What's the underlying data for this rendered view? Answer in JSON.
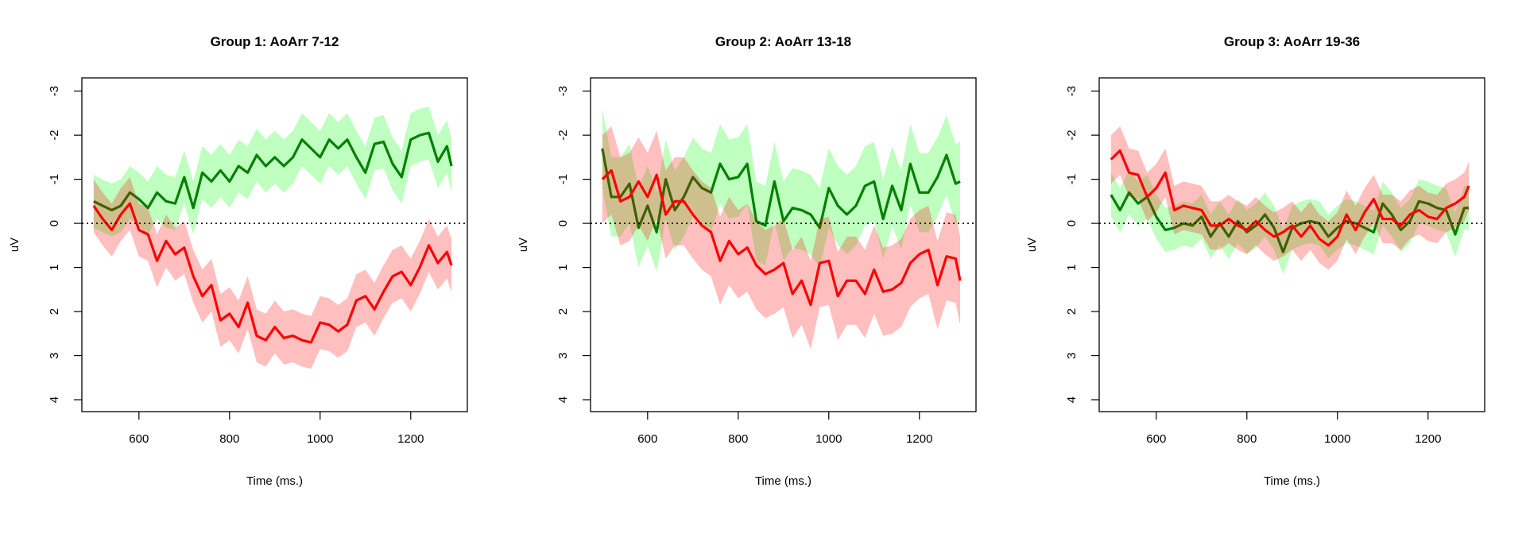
{
  "chart_data": [
    {
      "type": "line",
      "title": "Group 1: AoArr 7-12",
      "xlabel": "Time (ms.)",
      "ylabel": "uV",
      "xlim": [
        474,
        1325
      ],
      "ylim": [
        -3.3,
        4.27
      ],
      "y_inverted": true,
      "xticks": [
        600,
        800,
        1000,
        1200
      ],
      "yticks": [
        -3,
        -2,
        -1,
        0,
        1,
        2,
        3,
        4
      ],
      "reference_line": 0,
      "x": [
        500,
        520,
        540,
        560,
        580,
        600,
        620,
        640,
        660,
        680,
        700,
        720,
        740,
        760,
        780,
        800,
        820,
        840,
        860,
        880,
        900,
        920,
        940,
        960,
        980,
        1000,
        1020,
        1040,
        1060,
        1080,
        1100,
        1120,
        1140,
        1160,
        1180,
        1200,
        1220,
        1240,
        1260,
        1280,
        1290
      ],
      "series": [
        {
          "name": "green",
          "color": "#008000",
          "band": "rgba(0,255,0,0.25)",
          "se": 0.6,
          "values": [
            -0.5,
            -0.4,
            -0.3,
            -0.4,
            -0.7,
            -0.55,
            -0.35,
            -0.7,
            -0.5,
            -0.45,
            -1.05,
            -0.35,
            -1.15,
            -0.95,
            -1.2,
            -0.95,
            -1.3,
            -1.15,
            -1.55,
            -1.3,
            -1.5,
            -1.3,
            -1.5,
            -1.9,
            -1.7,
            -1.5,
            -1.9,
            -1.7,
            -1.9,
            -1.5,
            -1.15,
            -1.8,
            -1.85,
            -1.35,
            -1.05,
            -1.9,
            -2.0,
            -2.05,
            -1.4,
            -1.75,
            -1.3
          ]
        },
        {
          "name": "red",
          "color": "#FF0000",
          "band": "rgba(255,0,0,0.25)",
          "se": 0.6,
          "values": [
            -0.4,
            -0.1,
            0.15,
            -0.2,
            -0.45,
            0.15,
            0.25,
            0.85,
            0.4,
            0.7,
            0.55,
            1.2,
            1.65,
            1.4,
            2.2,
            2.05,
            2.35,
            1.8,
            2.55,
            2.65,
            2.35,
            2.6,
            2.55,
            2.65,
            2.7,
            2.25,
            2.3,
            2.45,
            2.3,
            1.75,
            1.65,
            1.95,
            1.55,
            1.2,
            1.1,
            1.4,
            1.0,
            0.5,
            0.9,
            0.65,
            0.95
          ]
        }
      ]
    },
    {
      "type": "line",
      "title": "Group 2: AoArr 13-18",
      "xlabel": "Time (ms.)",
      "ylabel": "uV",
      "xlim": [
        474,
        1325
      ],
      "ylim": [
        -3.3,
        4.27
      ],
      "y_inverted": true,
      "xticks": [
        600,
        800,
        1000,
        1200
      ],
      "yticks": [
        -3,
        -2,
        -1,
        0,
        1,
        2,
        3,
        4
      ],
      "reference_line": 0,
      "x": [
        500,
        520,
        540,
        560,
        580,
        600,
        620,
        640,
        660,
        680,
        700,
        720,
        740,
        760,
        780,
        800,
        820,
        840,
        860,
        880,
        900,
        920,
        940,
        960,
        980,
        1000,
        1020,
        1040,
        1060,
        1080,
        1100,
        1120,
        1140,
        1160,
        1180,
        1200,
        1220,
        1240,
        1260,
        1280,
        1290
      ],
      "series": [
        {
          "name": "green",
          "color": "#008000",
          "band": "rgba(0,255,0,0.25)",
          "se": 0.9,
          "values": [
            -1.7,
            -0.6,
            -0.6,
            -0.9,
            0.1,
            -0.4,
            0.2,
            -1.0,
            -0.3,
            -0.6,
            -1.05,
            -0.8,
            -0.7,
            -1.35,
            -1.0,
            -1.05,
            -1.35,
            -0.05,
            0.05,
            -0.95,
            -0.05,
            -0.35,
            -0.3,
            -0.2,
            0.1,
            -0.8,
            -0.4,
            -0.2,
            -0.4,
            -0.85,
            -0.95,
            -0.1,
            -0.85,
            -0.3,
            -1.35,
            -0.7,
            -0.7,
            -1.05,
            -1.55,
            -0.9,
            -0.95
          ]
        },
        {
          "name": "red",
          "color": "#FF0000",
          "band": "rgba(255,0,0,0.25)",
          "se": 1.0,
          "values": [
            -1.0,
            -1.2,
            -0.5,
            -0.6,
            -0.95,
            -0.6,
            -1.1,
            -0.2,
            -0.5,
            -0.5,
            -0.2,
            0.05,
            0.2,
            0.85,
            0.4,
            0.7,
            0.55,
            0.95,
            1.15,
            1.05,
            0.9,
            1.6,
            1.3,
            1.85,
            0.9,
            0.85,
            1.65,
            1.3,
            1.3,
            1.6,
            1.05,
            1.55,
            1.5,
            1.35,
            0.9,
            0.7,
            0.6,
            1.4,
            0.75,
            0.8,
            1.3
          ]
        }
      ]
    },
    {
      "type": "line",
      "title": "Group 3: AoArr 19-36",
      "xlabel": "Time (ms.)",
      "ylabel": "uV",
      "xlim": [
        474,
        1325
      ],
      "ylim": [
        -3.3,
        4.27
      ],
      "y_inverted": true,
      "xticks": [
        600,
        800,
        1000,
        1200
      ],
      "yticks": [
        -3,
        -2,
        -1,
        0,
        1,
        2,
        3,
        4
      ],
      "reference_line": 0,
      "x": [
        500,
        520,
        540,
        560,
        580,
        600,
        620,
        640,
        660,
        680,
        700,
        720,
        740,
        760,
        780,
        800,
        820,
        840,
        860,
        880,
        900,
        920,
        940,
        960,
        980,
        1000,
        1020,
        1040,
        1060,
        1080,
        1100,
        1120,
        1140,
        1160,
        1180,
        1200,
        1220,
        1240,
        1260,
        1280,
        1290
      ],
      "series": [
        {
          "name": "green",
          "color": "#008000",
          "band": "rgba(0,255,0,0.25)",
          "se": 0.5,
          "values": [
            -0.65,
            -0.3,
            -0.7,
            -0.45,
            -0.6,
            -0.15,
            0.15,
            0.1,
            0.0,
            0.05,
            -0.15,
            0.3,
            0.0,
            0.3,
            -0.05,
            0.2,
            0.05,
            -0.2,
            0.1,
            0.65,
            0.1,
            0.0,
            -0.05,
            0.0,
            0.3,
            0.1,
            -0.05,
            0.0,
            0.1,
            0.2,
            -0.45,
            -0.2,
            0.15,
            -0.05,
            -0.5,
            -0.45,
            -0.35,
            -0.3,
            0.25,
            -0.35,
            -0.35
          ]
        },
        {
          "name": "red",
          "color": "#FF0000",
          "band": "rgba(255,0,0,0.25)",
          "se": 0.55,
          "values": [
            -1.45,
            -1.65,
            -1.15,
            -1.1,
            -0.6,
            -0.8,
            -1.15,
            -0.3,
            -0.4,
            -0.35,
            -0.3,
            0.05,
            0.05,
            -0.1,
            0.05,
            0.15,
            -0.05,
            0.15,
            0.3,
            0.2,
            0.05,
            0.3,
            0.05,
            0.35,
            0.5,
            0.3,
            -0.2,
            0.15,
            -0.25,
            -0.55,
            -0.1,
            -0.1,
            0.05,
            -0.2,
            -0.3,
            -0.15,
            -0.1,
            -0.35,
            -0.45,
            -0.6,
            -0.85
          ]
        }
      ]
    }
  ]
}
